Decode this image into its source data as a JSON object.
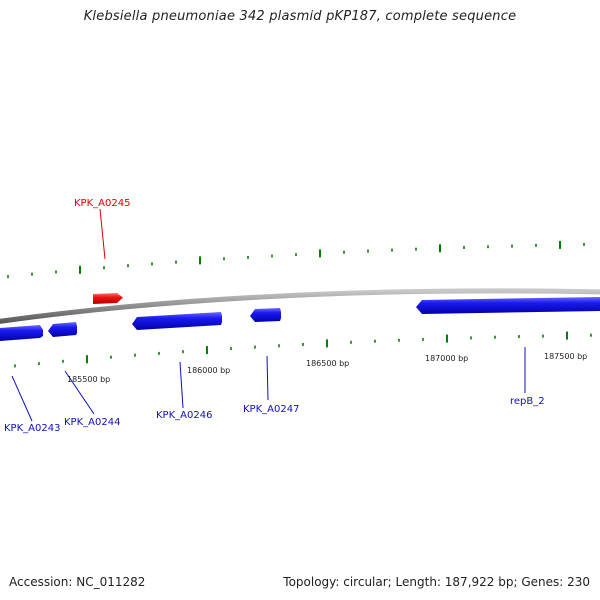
{
  "title": "Klebsiella pneumoniae 342 plasmid pKP187, complete sequence",
  "footer": {
    "accession": "Accession: NC_011282",
    "summary": "Topology: circular; Length: 187,922 bp; Genes: 230"
  },
  "colors": {
    "forward_gene": "#e00000",
    "reverse_gene": "#1010e0",
    "tick": "#008000",
    "backbone": "#8a8a8a",
    "label_forward": "#e00000",
    "label_reverse": "#1010c0"
  },
  "scale_labels": [
    "185500 bp",
    "186000 bp",
    "186500 bp",
    "187000 bp",
    "187500 bp"
  ],
  "genes": [
    {
      "name": "KPK_A0245",
      "strand": "forward"
    },
    {
      "name": "KPK_A0243",
      "strand": "reverse"
    },
    {
      "name": "KPK_A0244",
      "strand": "reverse"
    },
    {
      "name": "KPK_A0246",
      "strand": "reverse"
    },
    {
      "name": "KPK_A0247",
      "strand": "reverse"
    },
    {
      "name": "repB_2",
      "strand": "reverse"
    }
  ]
}
